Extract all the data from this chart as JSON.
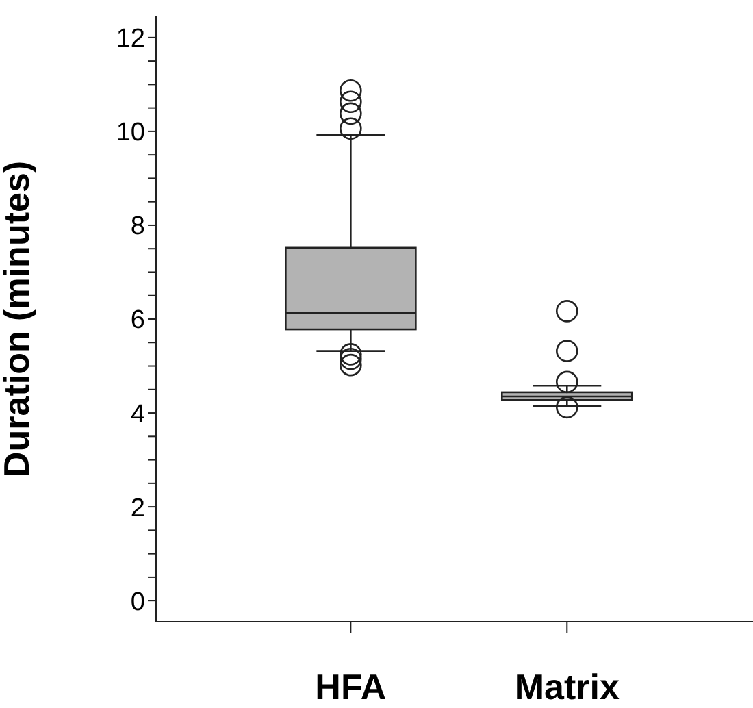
{
  "chart_data": {
    "type": "box",
    "ylabel": "Duration (minutes)",
    "categories": [
      "HFA",
      "Matrix"
    ],
    "boxes": [
      {
        "low": 5.32,
        "q1": 5.78,
        "median": 6.13,
        "q3": 7.52,
        "high": 9.93,
        "outliers": [
          10.87,
          10.63,
          10.38,
          10.06,
          5.25,
          5.15,
          5.02
        ]
      },
      {
        "low": 4.15,
        "q1": 4.28,
        "median": 4.35,
        "q3": 4.44,
        "high": 4.58,
        "outliers": [
          6.17,
          5.32,
          4.66,
          4.12
        ]
      }
    ],
    "color": "#b3b3b3",
    "ylim": [
      -0.45,
      12.45
    ],
    "yticks": [
      0,
      {
        "value": 0.5,
        "label": null
      },
      {
        "value": 1,
        "label": null
      },
      {
        "value": 1.5,
        "label": null
      },
      2,
      {
        "value": 2.5,
        "label": null
      },
      {
        "value": 3,
        "label": null
      },
      {
        "value": 3.5,
        "label": null
      },
      4,
      {
        "value": 4.5,
        "label": null
      },
      {
        "value": 5,
        "label": null
      },
      {
        "value": 5.5,
        "label": null
      },
      6,
      {
        "value": 6.5,
        "label": null
      },
      {
        "value": 7,
        "label": null
      },
      {
        "value": 7.5,
        "label": null
      },
      8,
      {
        "value": 8.5,
        "label": null
      },
      {
        "value": 9,
        "label": null
      },
      {
        "value": 9.5,
        "label": null
      },
      10,
      {
        "value": 10.5,
        "label": null
      },
      {
        "value": 11,
        "label": null
      },
      {
        "value": 11.5,
        "label": null
      },
      12
    ],
    "grid": false,
    "legend": false
  }
}
